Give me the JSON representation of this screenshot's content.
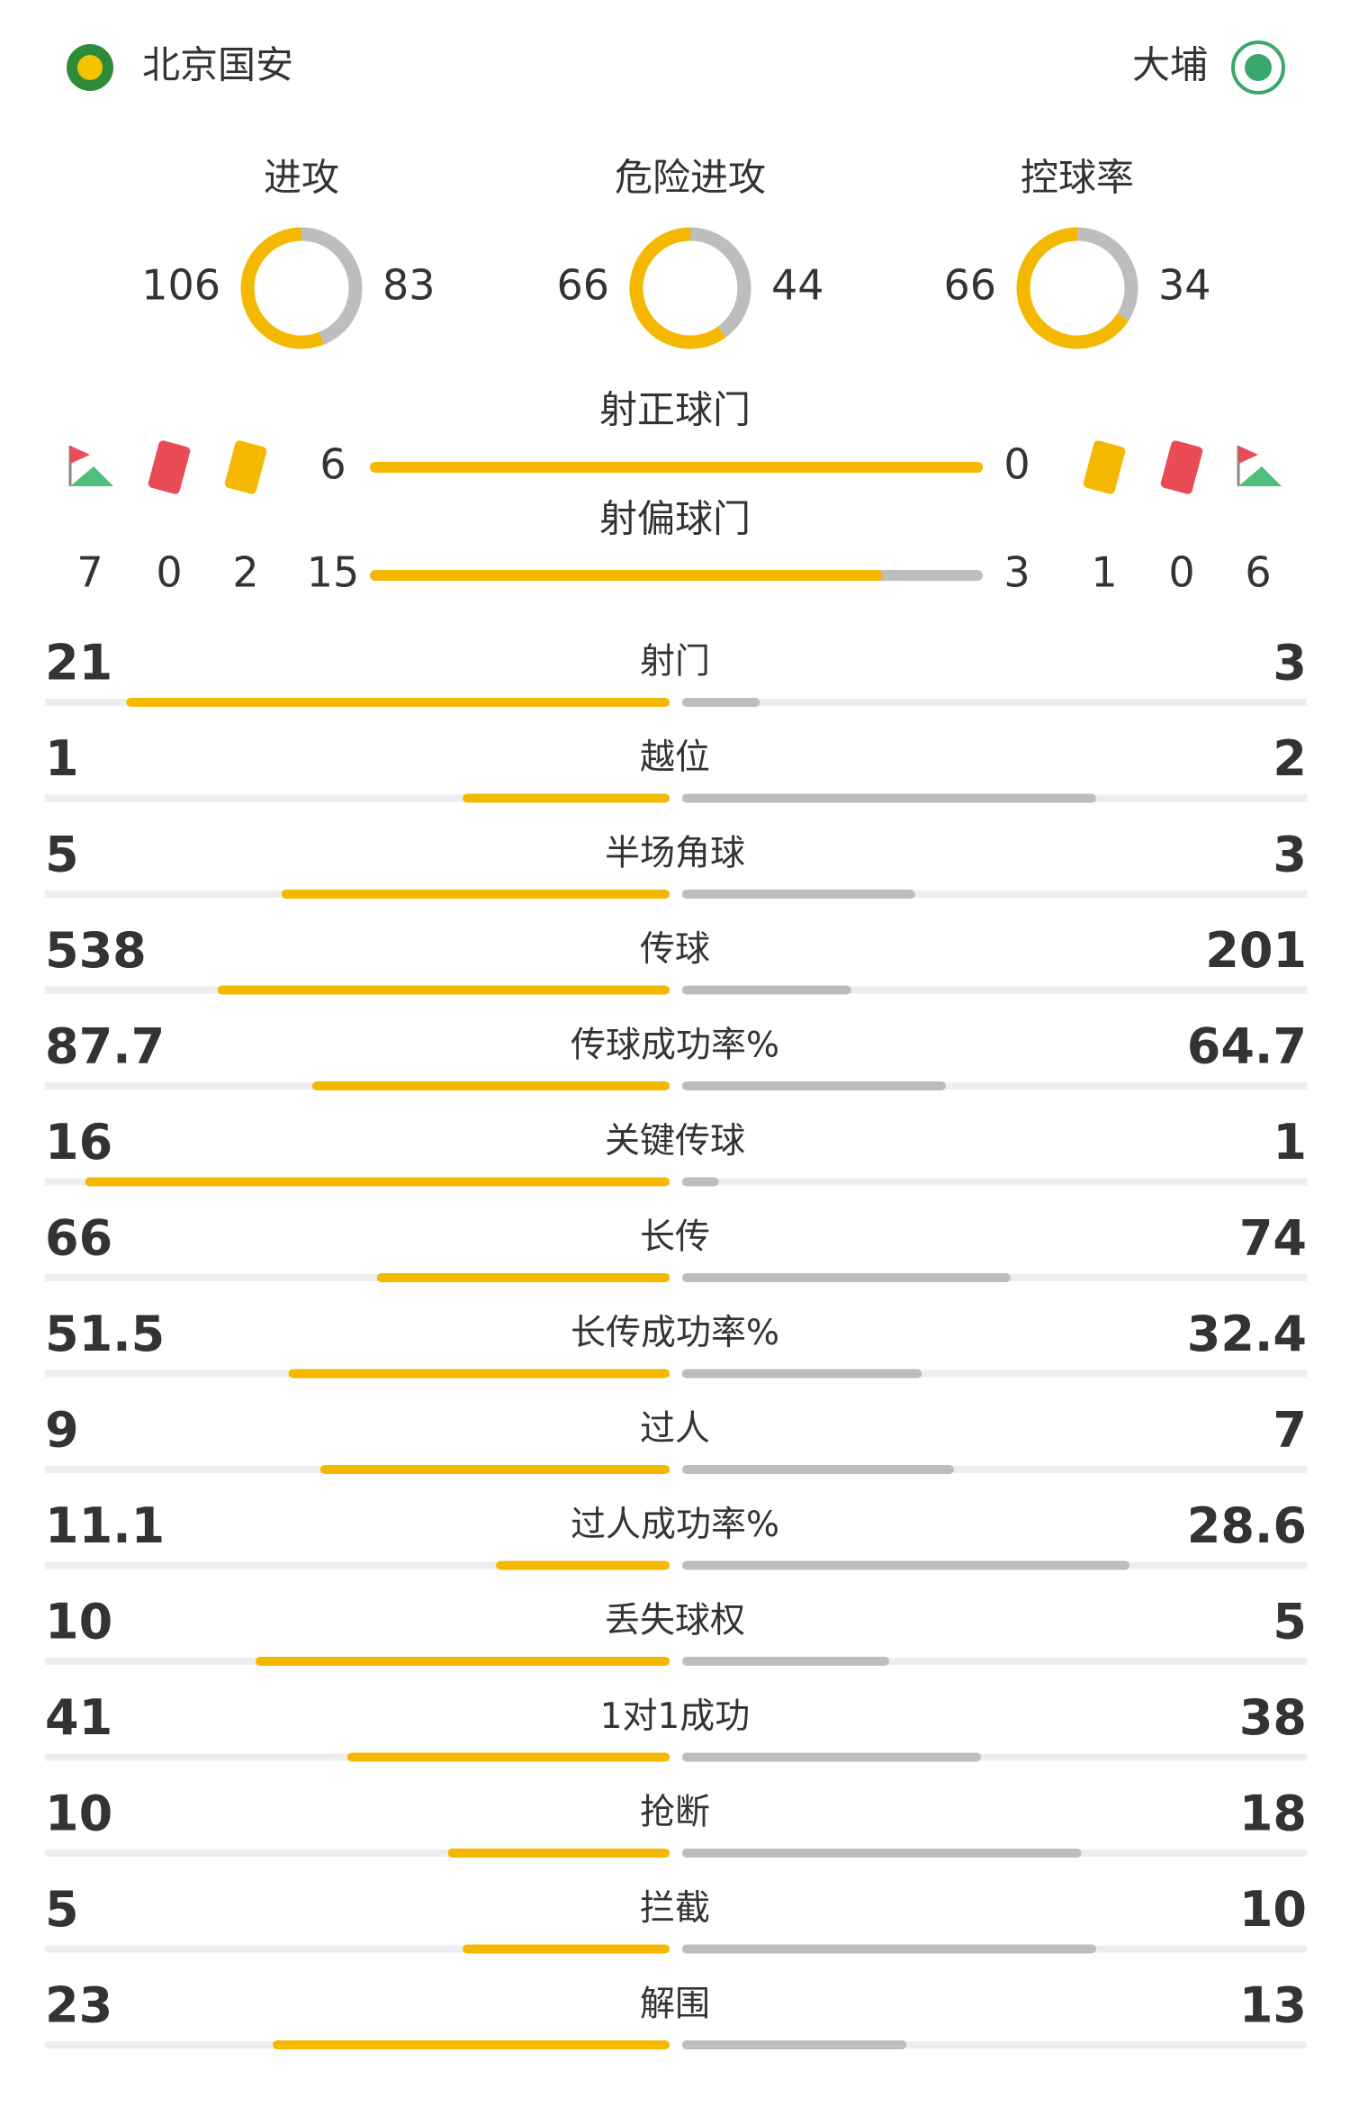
{
  "header": {
    "home_team": "北京国安",
    "away_team": "大埔"
  },
  "donuts": [
    {
      "label": "进攻",
      "home": 106,
      "away": 83
    },
    {
      "label": "危险进攻",
      "home": 66,
      "away": 44
    },
    {
      "label": "控球率",
      "home": 66,
      "away": 34
    }
  ],
  "shots": [
    {
      "label": "射正球门",
      "home": 6,
      "away": 0
    },
    {
      "label": "射偏球门",
      "home": 15,
      "away": 3
    }
  ],
  "cards": {
    "home": {
      "corners": 7,
      "red": 0,
      "yellow": 2
    },
    "away": {
      "yellow": 1,
      "red": 0,
      "corners": 6
    }
  },
  "stats": [
    {
      "label": "射门",
      "home": 21,
      "away": 3
    },
    {
      "label": "越位",
      "home": 1,
      "away": 2
    },
    {
      "label": "半场角球",
      "home": 5,
      "away": 3
    },
    {
      "label": "传球",
      "home": 538,
      "away": 201
    },
    {
      "label": "传球成功率%",
      "home": 87.7,
      "away": 64.7
    },
    {
      "label": "关键传球",
      "home": 16,
      "away": 1
    },
    {
      "label": "长传",
      "home": 66,
      "away": 74
    },
    {
      "label": "长传成功率%",
      "home": 51.5,
      "away": 32.4
    },
    {
      "label": "过人",
      "home": 9,
      "away": 7
    },
    {
      "label": "过人成功率%",
      "home": 11.1,
      "away": 28.6
    },
    {
      "label": "丢失球权",
      "home": 10,
      "away": 5
    },
    {
      "label": "1对1成功",
      "home": 41,
      "away": 38
    },
    {
      "label": "抢断",
      "home": 10,
      "away": 18
    },
    {
      "label": "拦截",
      "home": 5,
      "away": 10
    },
    {
      "label": "解围",
      "home": 23,
      "away": 13
    }
  ]
}
